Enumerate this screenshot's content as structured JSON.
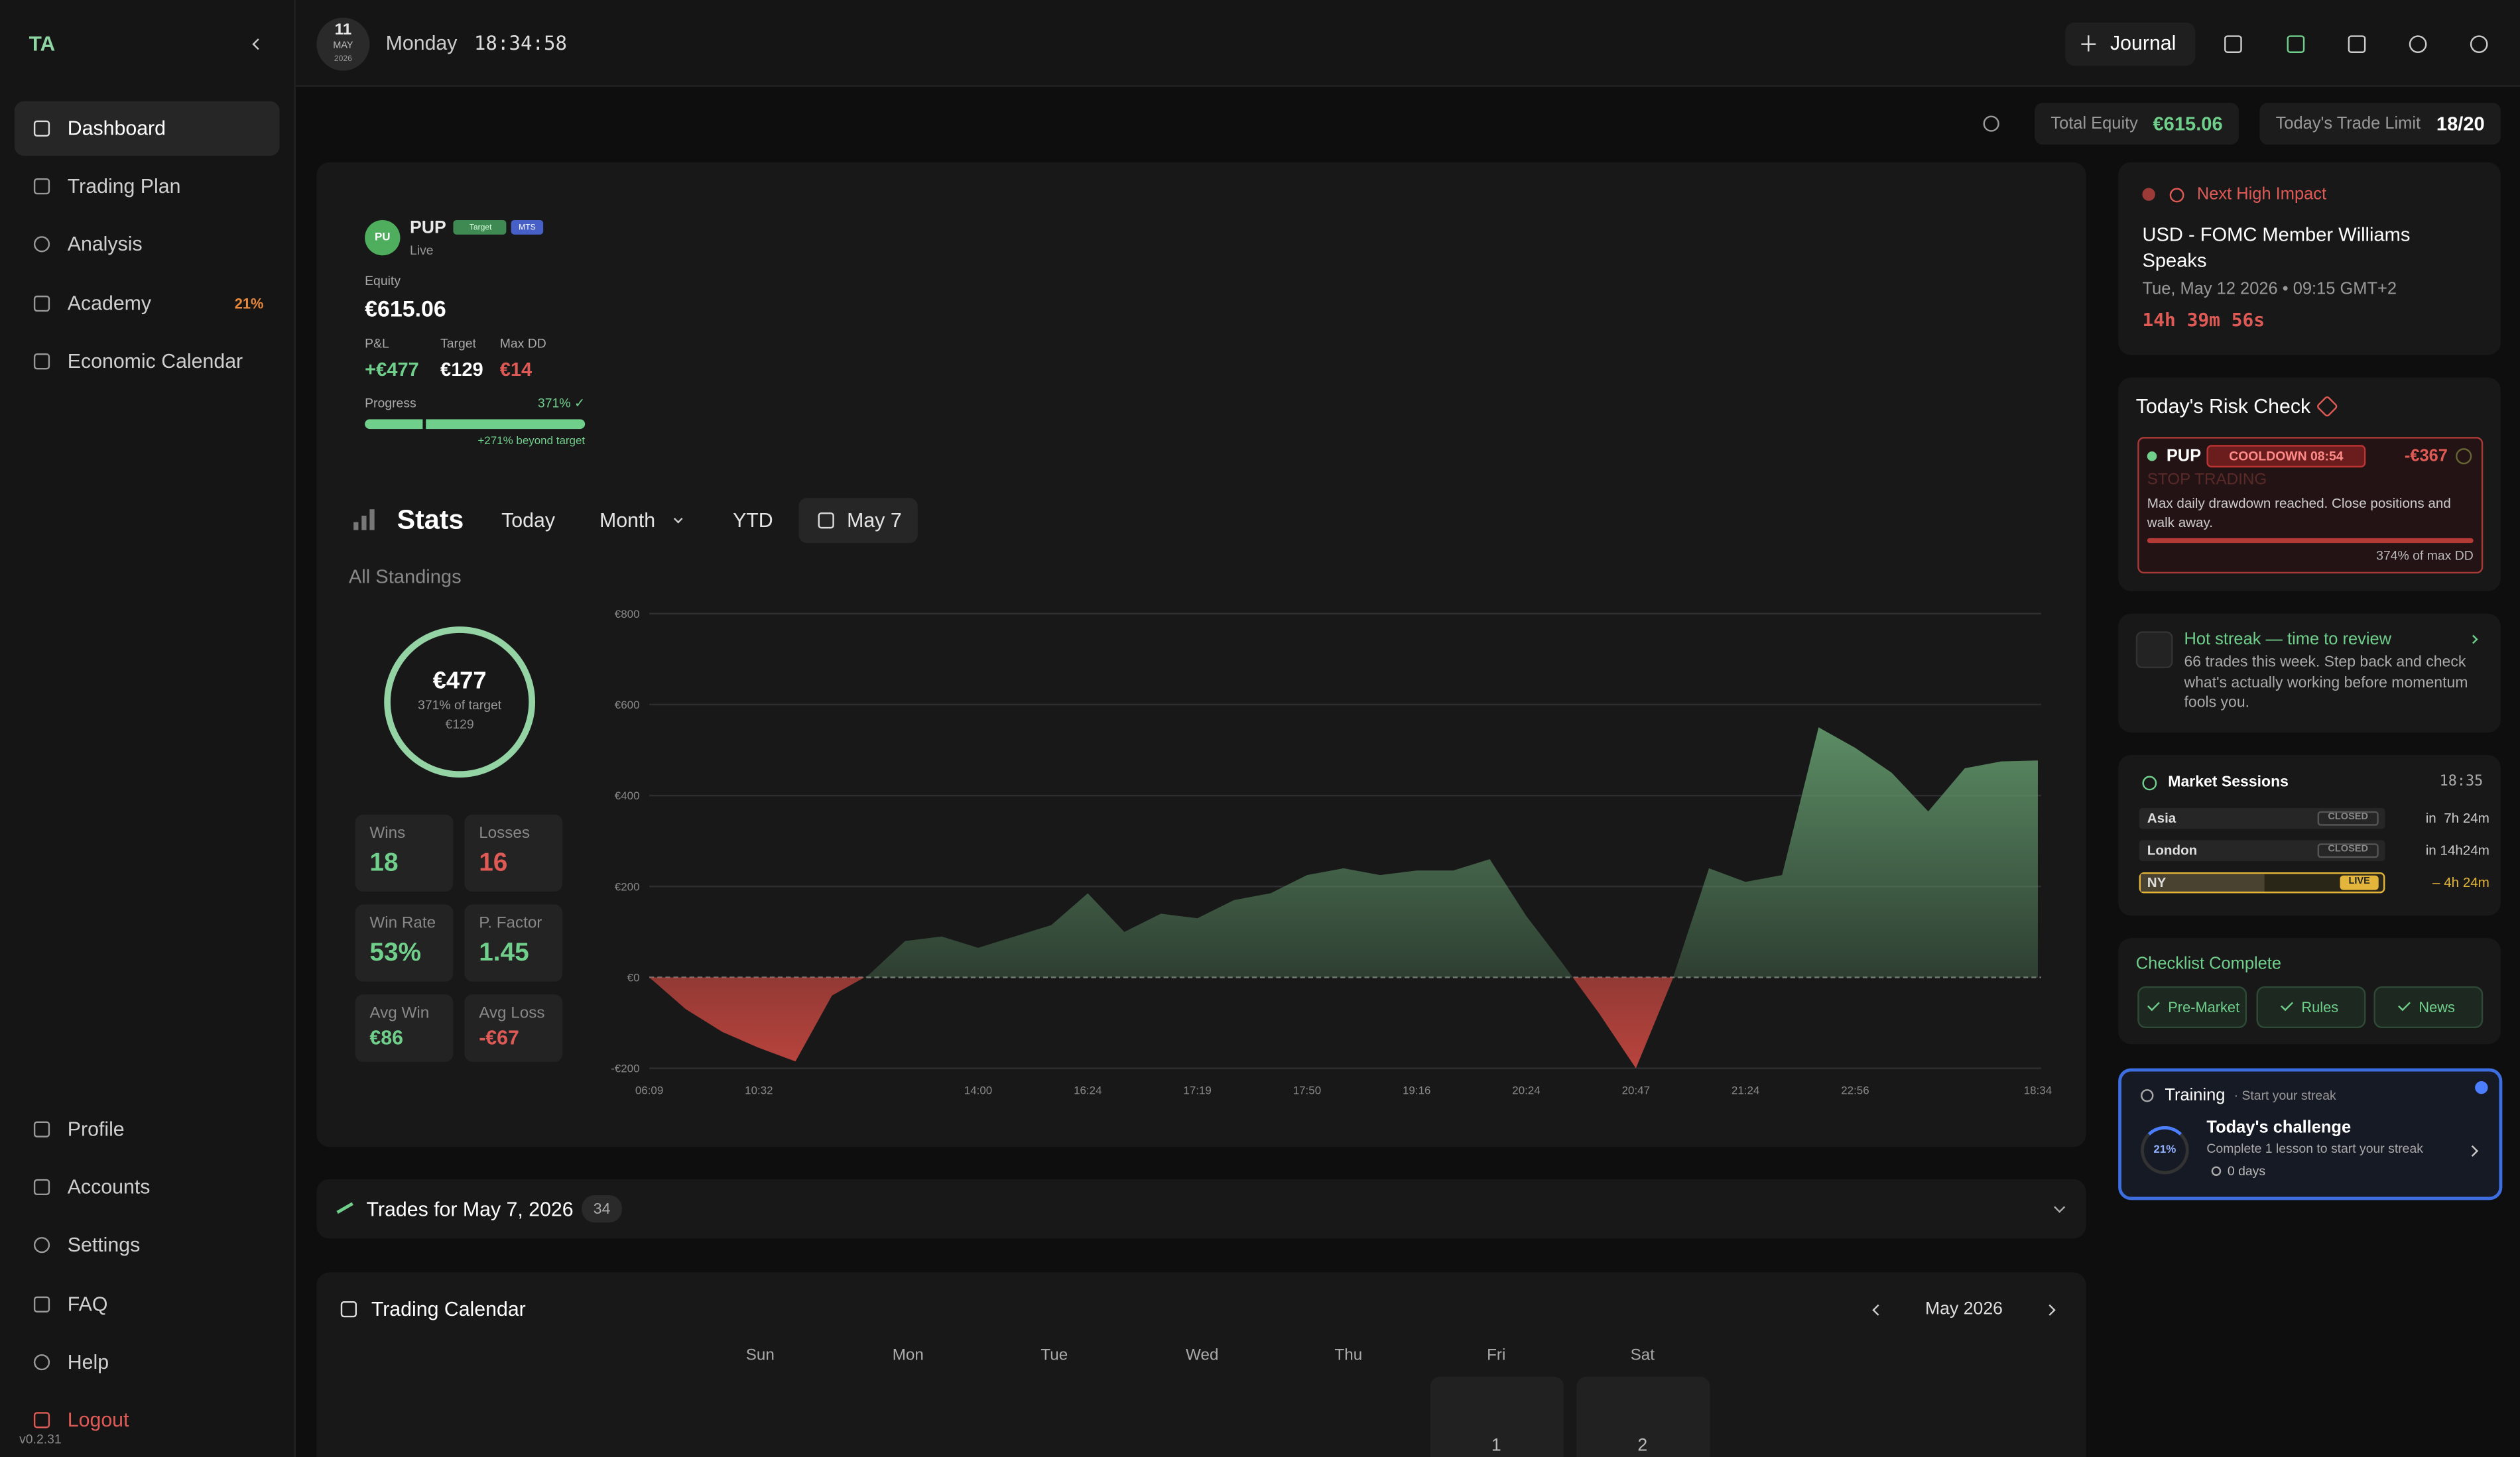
{
  "sidebar": {
    "logo": "TA",
    "nav": [
      {
        "label": "Dashboard"
      },
      {
        "label": "Trading Plan"
      },
      {
        "label": "Analysis"
      },
      {
        "label": "Academy",
        "badge": "21%"
      },
      {
        "label": "Economic Calendar"
      }
    ],
    "bottom_nav": [
      {
        "label": "Profile"
      },
      {
        "label": "Accounts"
      },
      {
        "label": "Settings"
      },
      {
        "label": "FAQ"
      },
      {
        "label": "Help"
      }
    ],
    "logout": "Logout",
    "version": "v0.2.31"
  },
  "topbar": {
    "day": "11",
    "month": "MAY",
    "year": "2026",
    "weekday": "Monday",
    "time": "18:34:58",
    "journal": "Journal"
  },
  "summary": {
    "equity_label": "Total Equity",
    "equity": "€615.06",
    "limit_label": "Today's Trade Limit",
    "limit": "18/20"
  },
  "account": {
    "initials": "PU",
    "name": "PUP",
    "tags": [
      "Target",
      "MTS"
    ],
    "status": "Live",
    "equity_label": "Equity",
    "equity": "€615.06",
    "metrics": [
      {
        "label": "P&L",
        "value": "+€477"
      },
      {
        "label": "Target",
        "value": "€129"
      },
      {
        "label": "Max DD",
        "value": "€14"
      }
    ],
    "progress_label": "Progress",
    "progress": "371% ✓",
    "progress_note": "+271% beyond target"
  },
  "stats": {
    "title": "Stats",
    "filters": [
      "Today",
      "Month",
      "YTD",
      "May 7"
    ],
    "standings": "All Standings",
    "ring": {
      "value": "€477",
      "sub": "371% of target",
      "target": "€129"
    },
    "tiles": [
      {
        "label": "Wins",
        "value": "18"
      },
      {
        "label": "Losses",
        "value": "16"
      },
      {
        "label": "Win Rate",
        "value": "53%"
      },
      {
        "label": "P. Factor",
        "value": "1.45"
      },
      {
        "label": "Avg Win",
        "value": "€86"
      },
      {
        "label": "Avg Loss",
        "value": "-€67"
      }
    ],
    "chart": {
      "type": "area",
      "categories": [
        "06:09",
        null,
        null,
        "10:32",
        null,
        null,
        null,
        null,
        null,
        "14:00",
        null,
        null,
        "16:24",
        null,
        null,
        "17:19",
        null,
        null,
        "17:50",
        null,
        null,
        "19:16",
        null,
        null,
        "20:24",
        null,
        null,
        "20:47",
        null,
        null,
        "21:24",
        null,
        null,
        "22:56",
        null,
        null,
        null,
        null,
        "18:34"
      ],
      "values": [
        0,
        -70,
        -120,
        -155,
        -185,
        -40,
        5,
        80,
        90,
        65,
        90,
        115,
        185,
        100,
        140,
        130,
        170,
        185,
        225,
        240,
        225,
        235,
        235,
        260,
        135,
        30,
        -80,
        -200,
        -5,
        240,
        210,
        225,
        550,
        505,
        450,
        365,
        460,
        475,
        477
      ],
      "positive_color": "#5f9368",
      "negative_color": "#c2463f",
      "ylim": [
        -200,
        800
      ],
      "yticks": [
        {
          "value": -200,
          "label": "-€200"
        },
        {
          "value": 0,
          "label": "€0"
        },
        {
          "value": 200,
          "label": "€200"
        },
        {
          "value": 400,
          "label": "€400"
        },
        {
          "value": 600,
          "label": "€600"
        },
        {
          "value": 800,
          "label": "€800"
        }
      ],
      "grid": true
    }
  },
  "trades": {
    "title": "Trades for May 7, 2026",
    "count": "34"
  },
  "calendar": {
    "title": "Trading Calendar",
    "month": "May 2026",
    "weekdays": [
      "Sun",
      "Mon",
      "Tue",
      "Wed",
      "Thu",
      "Fri",
      "Sat"
    ],
    "days": [
      "1",
      "2"
    ]
  },
  "news": {
    "label": "Next High Impact",
    "title": "USD - FOMC Member Williams Speaks",
    "date": "Tue, May 12 2026 • 09:15 GMT+2",
    "countdown": "14h 39m 56s"
  },
  "risk": {
    "title": "Today's Risk Check",
    "account": "PUP",
    "badge": "COOLDOWN 08:54",
    "amount": "-€367",
    "status": "STOP TRADING",
    "message": "Max daily drawdown reached. Close positions and walk away.",
    "dd": "374% of max DD"
  },
  "streak": {
    "title": "Hot streak — time to review",
    "text": "66 trades this week. Step back and check what's actually working before momentum fools you."
  },
  "sessions": {
    "title": "Market Sessions",
    "time": "18:35",
    "rows": [
      {
        "name": "Asia",
        "status": "CLOSED",
        "next": "in  7h 24m"
      },
      {
        "name": "London",
        "status": "CLOSED",
        "next": "in 14h24m"
      },
      {
        "name": "NY",
        "status": "LIVE",
        "next": "– 4h 24m"
      }
    ]
  },
  "checklist": {
    "title": "Checklist Complete",
    "items": [
      "Pre-Market",
      "Rules",
      "News"
    ]
  },
  "training": {
    "title": "Training",
    "subtitle": "· Start your streak",
    "percent": "21%",
    "challenge": "Today's challenge",
    "text": "Complete 1 lesson to start your streak",
    "days": "0 days"
  }
}
